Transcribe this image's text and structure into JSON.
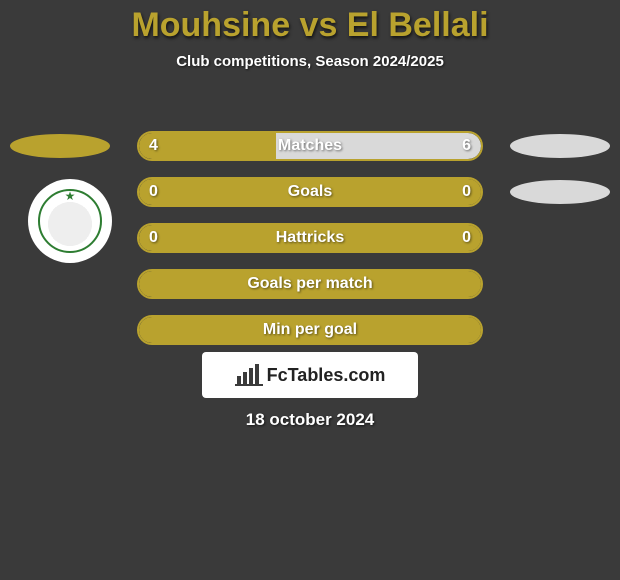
{
  "title": {
    "text": "Mouhsine vs El Bellali",
    "color": "#b9a22e"
  },
  "subtitle": "Club competitions, Season 2024/2025",
  "player_colors": {
    "left": "#b9a22e",
    "right": "#d9d9d9"
  },
  "side_ellipse": {
    "width": 100,
    "height": 24
  },
  "badge": {
    "ring_color": "#2e7d32",
    "star_color": "#2e7d32"
  },
  "bars": [
    {
      "label": "Matches",
      "left": "4",
      "right": "6",
      "left_pct": 40,
      "right_pct": 60,
      "show_values": true
    },
    {
      "label": "Goals",
      "left": "0",
      "right": "0",
      "left_pct": 100,
      "right_pct": 0,
      "show_values": true
    },
    {
      "label": "Hattricks",
      "left": "0",
      "right": "0",
      "left_pct": 100,
      "right_pct": 0,
      "show_values": true
    },
    {
      "label": "Goals per match",
      "left": "",
      "right": "",
      "left_pct": 100,
      "right_pct": 0,
      "show_values": false
    },
    {
      "label": "Min per goal",
      "left": "",
      "right": "",
      "left_pct": 100,
      "right_pct": 0,
      "show_values": false
    }
  ],
  "bar_layout": {
    "top_first": 123,
    "spacing": 46,
    "track_border": "#b9a22e"
  },
  "logo": {
    "text": "FcTables.com"
  },
  "date": "18 october 2024"
}
